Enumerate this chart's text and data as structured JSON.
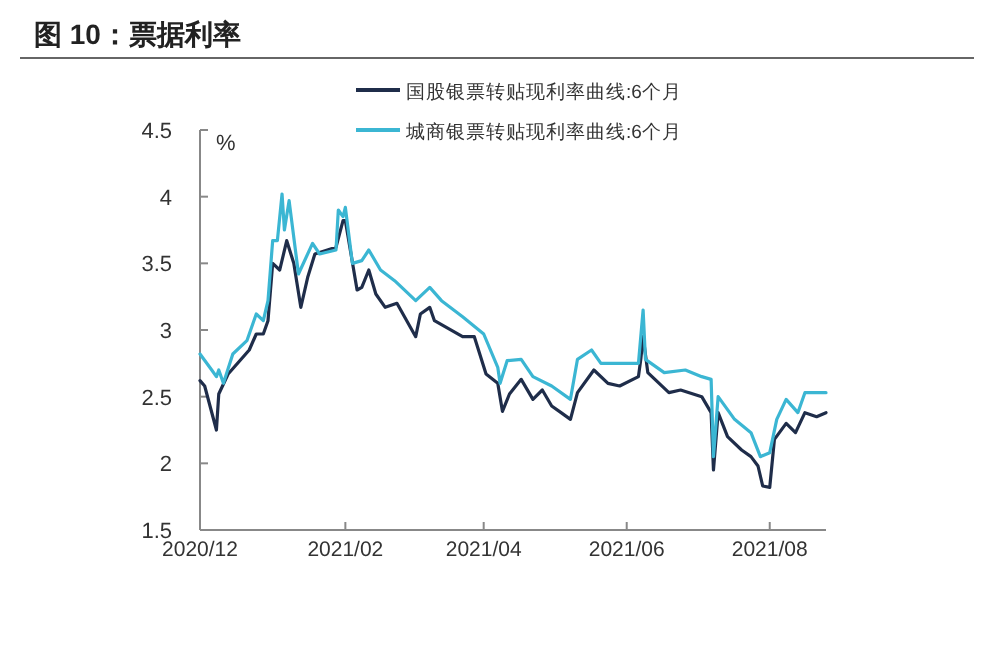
{
  "chart_data": {
    "type": "line",
    "title": "图 10：票据利率",
    "ylabel": "%",
    "xlim": [
      "2020-12-01",
      "2021-08-25"
    ],
    "xticks": [
      {
        "value": "2020-12-01",
        "label": "2020/12"
      },
      {
        "value": "2021-02-01",
        "label": "2021/02"
      },
      {
        "value": "2021-04-01",
        "label": "2021/04"
      },
      {
        "value": "2021-06-01",
        "label": "2021/06"
      },
      {
        "value": "2021-08-01",
        "label": "2021/08"
      }
    ],
    "ylim": [
      1.5,
      4.5
    ],
    "yticks": [
      1.5,
      2,
      2.5,
      3,
      3.5,
      4,
      4.5
    ],
    "grid": false,
    "legend": "top",
    "marker": "none",
    "line_style": "solid",
    "series": [
      {
        "name": "国股银票转贴现利率曲线:6个月",
        "color": "#1f2d4a",
        "x": [
          "2020-12-01",
          "2020-12-03",
          "2020-12-08",
          "2020-12-09",
          "2020-12-13",
          "2020-12-22",
          "2020-12-25",
          "2020-12-28",
          "2020-12-30",
          "2021-01-01",
          "2021-01-04",
          "2021-01-07",
          "2021-01-10",
          "2021-01-13",
          "2021-01-16",
          "2021-01-19",
          "2021-01-28",
          "2021-01-31",
          "2021-02-01",
          "2021-02-06",
          "2021-02-08",
          "2021-02-11",
          "2021-02-14",
          "2021-02-18",
          "2021-02-23",
          "2021-03-03",
          "2021-03-05",
          "2021-03-09",
          "2021-03-11",
          "2021-03-23",
          "2021-03-28",
          "2021-04-02",
          "2021-04-07",
          "2021-04-09",
          "2021-04-12",
          "2021-04-17",
          "2021-04-22",
          "2021-04-26",
          "2021-04-30",
          "2021-05-04",
          "2021-05-08",
          "2021-05-11",
          "2021-05-18",
          "2021-05-24",
          "2021-05-29",
          "2021-06-06",
          "2021-06-07",
          "2021-06-08",
          "2021-06-10",
          "2021-06-19",
          "2021-06-24",
          "2021-07-03",
          "2021-07-07",
          "2021-07-08",
          "2021-07-10",
          "2021-07-14",
          "2021-07-20",
          "2021-07-24",
          "2021-07-27",
          "2021-07-29",
          "2021-08-01",
          "2021-08-03",
          "2021-08-08",
          "2021-08-12",
          "2021-08-16",
          "2021-08-21",
          "2021-08-25"
        ],
        "values": [
          2.62,
          2.58,
          2.25,
          2.52,
          2.67,
          2.85,
          2.97,
          2.97,
          3.07,
          3.5,
          3.45,
          3.67,
          3.5,
          3.17,
          3.4,
          3.57,
          3.62,
          3.82,
          3.82,
          3.3,
          3.32,
          3.45,
          3.27,
          3.17,
          3.2,
          2.95,
          3.12,
          3.17,
          3.07,
          2.95,
          2.95,
          2.67,
          2.6,
          2.39,
          2.52,
          2.63,
          2.48,
          2.55,
          2.43,
          2.38,
          2.33,
          2.53,
          2.7,
          2.6,
          2.58,
          2.65,
          2.78,
          2.95,
          2.68,
          2.53,
          2.55,
          2.5,
          2.38,
          1.95,
          2.38,
          2.2,
          2.1,
          2.05,
          1.98,
          1.83,
          1.82,
          2.18,
          2.3,
          2.23,
          2.38,
          2.35,
          2.38
        ]
      },
      {
        "name": "城商银票转贴现利率曲线:6个月",
        "color": "#3bb6d3",
        "x": [
          "2020-12-01",
          "2020-12-06",
          "2020-12-08",
          "2020-12-09",
          "2020-12-11",
          "2020-12-15",
          "2020-12-21",
          "2020-12-25",
          "2020-12-28",
          "2020-12-30",
          "2021-01-01",
          "2021-01-03",
          "2021-01-05",
          "2021-01-06",
          "2021-01-08",
          "2021-01-12",
          "2021-01-18",
          "2021-01-21",
          "2021-01-28",
          "2021-01-29",
          "2021-01-31",
          "2021-02-01",
          "2021-02-04",
          "2021-02-08",
          "2021-02-11",
          "2021-02-16",
          "2021-02-22",
          "2021-03-03",
          "2021-03-09",
          "2021-03-14",
          "2021-03-23",
          "2021-04-01",
          "2021-04-07",
          "2021-04-08",
          "2021-04-11",
          "2021-04-17",
          "2021-04-22",
          "2021-04-30",
          "2021-05-08",
          "2021-05-11",
          "2021-05-17",
          "2021-05-21",
          "2021-05-29",
          "2021-06-06",
          "2021-06-08",
          "2021-06-09",
          "2021-06-17",
          "2021-06-26",
          "2021-07-03",
          "2021-07-07",
          "2021-07-08",
          "2021-07-10",
          "2021-07-17",
          "2021-07-24",
          "2021-07-28",
          "2021-08-01",
          "2021-08-04",
          "2021-08-08",
          "2021-08-13",
          "2021-08-16",
          "2021-08-25"
        ],
        "values": [
          2.82,
          2.7,
          2.65,
          2.7,
          2.6,
          2.82,
          2.92,
          3.12,
          3.07,
          3.22,
          3.67,
          3.67,
          4.02,
          3.75,
          3.97,
          3.42,
          3.65,
          3.57,
          3.6,
          3.9,
          3.85,
          3.92,
          3.5,
          3.52,
          3.6,
          3.45,
          3.37,
          3.22,
          3.32,
          3.22,
          3.1,
          2.97,
          2.72,
          2.6,
          2.77,
          2.78,
          2.65,
          2.58,
          2.48,
          2.78,
          2.85,
          2.75,
          2.75,
          2.75,
          3.15,
          2.78,
          2.68,
          2.7,
          2.65,
          2.63,
          2.05,
          2.5,
          2.33,
          2.23,
          2.05,
          2.08,
          2.33,
          2.48,
          2.38,
          2.53,
          2.53
        ]
      }
    ]
  }
}
